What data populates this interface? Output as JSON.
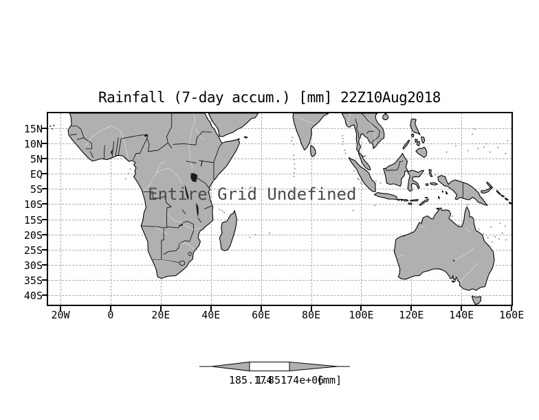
{
  "title": "Rainfall (7-day accum.) [mm] 22Z10Aug2018",
  "overlay_message": "Entire Grid Undefined",
  "y_axis": {
    "ticks": [
      {
        "label": "15N",
        "lat": 15
      },
      {
        "label": "10N",
        "lat": 10
      },
      {
        "label": "5N",
        "lat": 5
      },
      {
        "label": "EQ",
        "lat": 0
      },
      {
        "label": "5S",
        "lat": -5
      },
      {
        "label": "10S",
        "lat": -10
      },
      {
        "label": "15S",
        "lat": -15
      },
      {
        "label": "20S",
        "lat": -20
      },
      {
        "label": "25S",
        "lat": -25
      },
      {
        "label": "30S",
        "lat": -30
      },
      {
        "label": "35S",
        "lat": -35
      },
      {
        "label": "40S",
        "lat": -40
      }
    ]
  },
  "x_axis": {
    "ticks": [
      {
        "label": "20W",
        "lon": -20
      },
      {
        "label": "0",
        "lon": 0
      },
      {
        "label": "20E",
        "lon": 20
      },
      {
        "label": "40E",
        "lon": 40
      },
      {
        "label": "60E",
        "lon": 60
      },
      {
        "label": "80E",
        "lon": 80
      },
      {
        "label": "100E",
        "lon": 100
      },
      {
        "label": "120E",
        "lon": 120
      },
      {
        "label": "140E",
        "lon": 140
      },
      {
        "label": "160E",
        "lon": 160
      }
    ]
  },
  "colorbar": {
    "left_value": "185.174",
    "right_value": "1.85174e+06",
    "units_label": "[mm]"
  },
  "map_extent": {
    "lon_min": -25.5,
    "lon_max": 160.5,
    "lat_min": -43.6,
    "lat_max": 20.4
  },
  "colors": {
    "land": "#b0b0b0",
    "coastline": "#000000",
    "gridline": "#a9a9a9",
    "river": "#ffffff",
    "overlay_text": "#4a4a4a",
    "background": "#ffffff"
  },
  "chart_data": {
    "type": "map",
    "title": "Rainfall (7-day accum.) [mm] 22Z10Aug2018",
    "status": "Entire Grid Undefined",
    "x_ticks": [
      "20W",
      "0",
      "20E",
      "40E",
      "60E",
      "80E",
      "100E",
      "120E",
      "140E",
      "160E"
    ],
    "y_ticks": [
      "15N",
      "10N",
      "5N",
      "EQ",
      "5S",
      "10S",
      "15S",
      "20S",
      "25S",
      "30S",
      "35S",
      "40S"
    ],
    "colorbar_values": [
      "185.174",
      "1.85174e+06"
    ],
    "colorbar_units": "[mm]",
    "grid": true
  }
}
